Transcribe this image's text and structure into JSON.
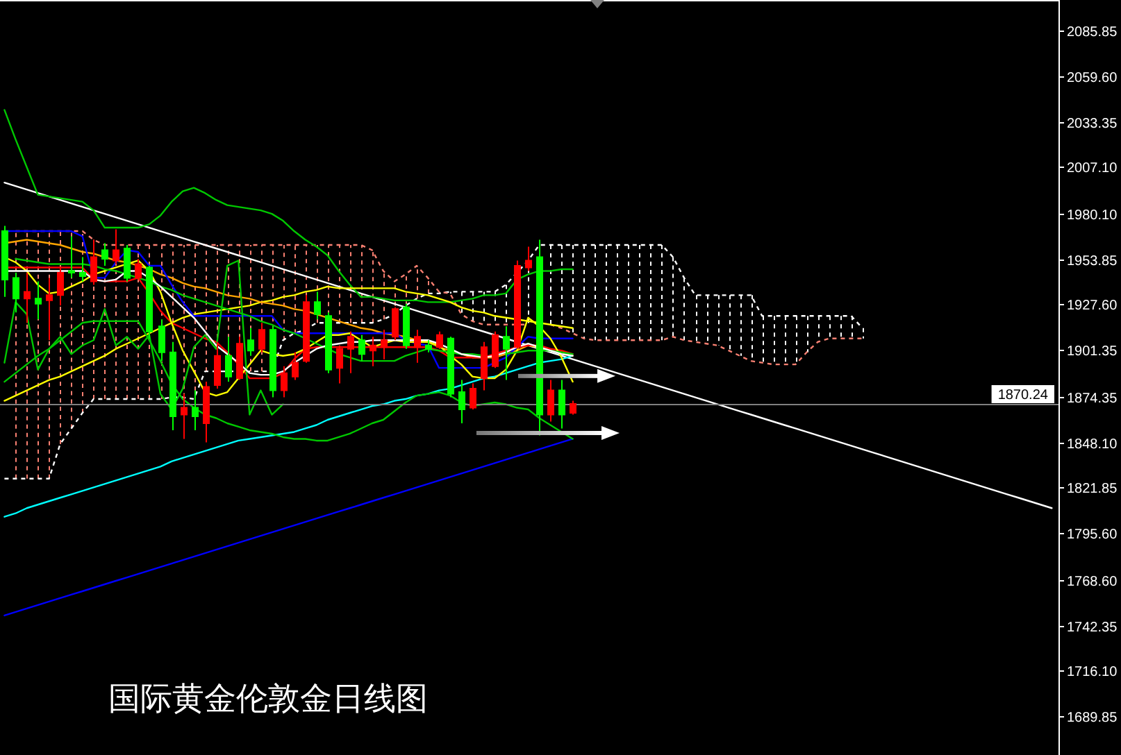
{
  "chart_data": {
    "type": "candlestick",
    "title": "国际黄金伦敦金日线图",
    "categories": [
      null,
      null,
      null,
      null,
      null,
      null,
      null,
      null,
      null,
      null,
      null,
      null,
      null,
      null,
      null,
      null,
      null,
      null,
      null,
      null,
      null,
      null,
      null,
      null,
      null,
      null,
      null,
      null,
      null,
      null,
      null,
      null,
      null,
      null,
      null,
      null,
      null,
      null,
      null,
      null,
      null,
      null,
      null,
      null,
      null,
      null,
      null,
      null,
      null,
      null,
      null,
      null,
      null,
      null,
      null,
      null,
      null,
      null,
      null,
      null,
      null,
      null,
      null,
      null,
      null,
      null,
      null,
      null,
      null,
      null,
      null,
      null,
      null,
      null,
      null,
      null,
      null,
      null,
      null,
      null,
      null,
      null,
      null,
      null,
      null,
      null,
      null,
      null,
      null,
      null,
      null,
      null,
      null,
      null,
      null
    ],
    "ohlc": [
      [
        1970,
        1973,
        1932,
        1942
      ],
      [
        1943,
        1946,
        1923,
        1931
      ],
      [
        1931,
        1946,
        1917,
        1935
      ],
      [
        1931,
        1941,
        1919,
        1928
      ],
      [
        1930,
        1943,
        1907,
        1933
      ],
      [
        1933,
        1949,
        1927,
        1946
      ],
      [
        1947,
        1967,
        1943,
        1946
      ],
      [
        1946,
        1955,
        1941,
        1944
      ],
      [
        1941,
        1965,
        1939,
        1955
      ],
      [
        1959,
        1963,
        1950,
        1954
      ],
      [
        1953,
        1971,
        1951,
        1959
      ],
      [
        1960,
        1962,
        1941,
        1943
      ],
      [
        1943,
        1954,
        1942,
        1951
      ],
      [
        1949,
        1950,
        1908,
        1912
      ],
      [
        1915,
        1919,
        1895,
        1900
      ],
      [
        1900,
        1906,
        1855,
        1863
      ],
      [
        1864,
        1876,
        1850,
        1868
      ],
      [
        1868,
        1878,
        1855,
        1863
      ],
      [
        1859,
        1883,
        1848,
        1880
      ],
      [
        1881,
        1906,
        1879,
        1898
      ],
      [
        1898,
        1909,
        1883,
        1886
      ],
      [
        1885,
        1909,
        1884,
        1905
      ],
      [
        1907,
        1914,
        1898,
        1901
      ],
      [
        1902,
        1917,
        1900,
        1913
      ],
      [
        1913,
        1915,
        1874,
        1878
      ],
      [
        1878,
        1892,
        1874,
        1888
      ],
      [
        1886,
        1900,
        1884,
        1894
      ],
      [
        1895,
        1933,
        1894,
        1929
      ],
      [
        1929,
        1935,
        1919,
        1922
      ],
      [
        1921,
        1923,
        1888,
        1890
      ],
      [
        1891,
        1904,
        1882,
        1902
      ],
      [
        1902,
        1912,
        1888,
        1909
      ],
      [
        1907,
        1910,
        1895,
        1899
      ],
      [
        1901,
        1909,
        1892,
        1904
      ],
      [
        1903,
        1913,
        1896,
        1907
      ],
      [
        1909,
        1926,
        1907,
        1925
      ],
      [
        1926,
        1928,
        1902,
        1904
      ],
      [
        1903,
        1913,
        1894,
        1909
      ],
      [
        1904,
        1907,
        1900,
        1902
      ],
      [
        1903,
        1912,
        1902,
        1910
      ],
      [
        1908,
        1909,
        1874,
        1876
      ],
      [
        1877,
        1884,
        1859,
        1867
      ],
      [
        1868,
        1882,
        1867,
        1879
      ],
      [
        1885,
        1906,
        1878,
        1903
      ],
      [
        1892,
        1912,
        1891,
        1910
      ],
      [
        1909,
        1915,
        1884,
        1902
      ],
      [
        1903,
        1953,
        1902,
        1950
      ],
      [
        1949,
        1961,
        1947,
        1953
      ],
      [
        1955,
        1965,
        1852,
        1864
      ],
      [
        1864,
        1884,
        1860,
        1878
      ],
      [
        1878,
        1884,
        1856,
        1864
      ],
      [
        1865,
        1872,
        1864,
        1870.24
      ],
      null,
      null,
      null,
      null,
      null,
      null,
      null,
      null,
      null,
      null,
      null,
      null,
      null,
      null,
      null,
      null,
      null,
      null,
      null,
      null,
      null,
      null,
      null,
      null,
      null,
      null,
      null,
      null,
      null,
      null,
      null,
      null,
      null,
      null,
      null,
      null,
      null,
      null,
      null,
      null,
      null,
      null,
      null
    ],
    "colors": [
      "#00ff00",
      "#00ff00",
      "#ff0000",
      "#00ff00",
      "#ff0000",
      "#ff0000",
      "#00ff00",
      "#00ff00",
      "#ff0000",
      "#00ff00",
      "#ff0000",
      "#00ff00",
      "#ff0000",
      "#00ff00",
      "#00ff00",
      "#00ff00",
      "#ff0000",
      "#00ff00",
      "#ff0000",
      "#ff0000",
      "#00ff00",
      "#ff0000",
      "#00ff00",
      "#ff0000",
      "#00ff00",
      "#ff0000",
      "#ff0000",
      "#ff0000",
      "#00ff00",
      "#00ff00",
      "#ff0000",
      "#ff0000",
      "#00ff00",
      "#ff0000",
      "#ff0000",
      "#ff0000",
      "#00ff00",
      "#ff0000",
      "#00ff00",
      "#ff0000",
      "#00ff00",
      "#00ff00",
      "#ff0000",
      "#ff0000",
      "#ff0000",
      "#00ff00",
      "#ff0000",
      "#ff0000",
      "#00ff00",
      "#ff0000",
      "#00ff00",
      "#ff0000",
      null,
      null,
      null,
      null,
      null,
      null,
      null,
      null,
      null,
      null,
      null,
      null,
      null,
      null,
      null,
      null,
      null,
      null,
      null,
      null,
      null,
      null,
      null,
      null,
      null,
      null,
      null,
      null,
      null,
      null,
      null,
      null,
      null,
      null,
      null,
      null,
      null,
      null,
      null,
      null,
      null,
      null,
      null
    ],
    "series": [
      {
        "type": "line",
        "color": "#ffffff",
        "line_style": "dashed",
        "values": [
          1827,
          1827,
          1827,
          1827,
          1827,
          1847,
          1856,
          1865,
          1873,
          1873,
          1873,
          1873,
          1873,
          1873,
          1873,
          1874,
          1874,
          1873,
          1889,
          1889,
          1889,
          1889,
          1889,
          1889,
          1889,
          1907,
          1911,
          1913,
          1917,
          1917,
          1917,
          1917,
          1917,
          1917,
          1919,
          1922,
          1927,
          1931,
          1934,
          1934,
          1935,
          1935,
          1935,
          1935,
          1935,
          1939,
          1946,
          1953,
          1962,
          1962,
          1962,
          1962,
          1962,
          1962,
          1962,
          1962,
          1962,
          1962,
          1962,
          1962,
          1955,
          1943,
          1933,
          1933,
          1933,
          1933,
          1933,
          1933,
          1921,
          1921,
          1921,
          1921,
          1921,
          1921,
          1921,
          1921,
          1921,
          1914,
          null,
          null,
          null,
          null,
          null,
          null,
          null,
          null,
          null,
          null,
          null,
          null,
          null,
          null,
          null,
          null,
          null
        ]
      },
      {
        "type": "line",
        "color": "#fa8072",
        "line_style": "dashed",
        "values": [
          null,
          1970,
          1970,
          1970,
          1970,
          1970,
          1970,
          1970,
          1965,
          1962,
          1962,
          1962,
          1962,
          1962,
          1962,
          1962,
          1962,
          1962,
          1962,
          1962,
          1962,
          1962,
          1962,
          1962,
          1962,
          1962,
          1962,
          1962,
          1962,
          1962,
          1962,
          1962,
          1962,
          1959,
          1947,
          1941,
          1945,
          1950,
          1943,
          1935,
          1934,
          1922,
          1918,
          1916,
          1916,
          1916,
          1916,
          1916,
          null,
          1916,
          1914,
          1911,
          1908,
          1907,
          1907,
          1907,
          1907,
          1907,
          1907,
          1907,
          1909,
          1907,
          1906,
          1905,
          1904,
          1901,
          1898,
          1895,
          1894,
          1893,
          1893,
          1893,
          1900,
          1906,
          1908,
          1908,
          1908,
          1908,
          null,
          null,
          null,
          null,
          null,
          null,
          null,
          null,
          null,
          null,
          null,
          null,
          null,
          null,
          null,
          null,
          null
        ]
      },
      {
        "type": "line",
        "color": "#ffffff",
        "values": [
          1998,
          1996,
          1994,
          1992,
          1990,
          1988,
          1986,
          1984,
          1982,
          1980,
          1978,
          1976,
          1974,
          1972,
          1970,
          1968,
          1966,
          1964,
          1962,
          1960,
          1958,
          1956,
          1954,
          1952,
          1950,
          1948,
          1946,
          1944,
          1942,
          1940,
          1938,
          1936,
          1934,
          1932,
          1930,
          1928,
          1926,
          1924,
          1922,
          1920,
          1918,
          1916,
          1914,
          1912,
          1910,
          1908,
          1906,
          1904,
          1902,
          1900,
          1898,
          1896,
          1894,
          1892,
          1890,
          1888,
          1886,
          1884,
          1882,
          1880,
          1878,
          1876,
          1874,
          1872,
          1870,
          1868,
          1866,
          1864,
          1862,
          1860,
          1858,
          1856,
          1854,
          1852,
          1850,
          1848,
          1846,
          1844,
          1842,
          1840,
          1838,
          1836,
          1834,
          1832,
          1830,
          1828,
          1826,
          1824,
          1822,
          1820,
          1818,
          1816,
          1814,
          1812,
          1810
        ]
      },
      {
        "type": "line",
        "color": "#0000ff",
        "values": [
          1748,
          1750,
          1752,
          1754,
          1756,
          1758,
          1760,
          1762,
          1764,
          1766,
          1768,
          1770,
          1772,
          1774,
          1776,
          1778,
          1780,
          1782,
          1784,
          1786,
          1788,
          1790,
          1792,
          1794,
          1796,
          1798,
          1800,
          1802,
          1804,
          1806,
          1808,
          1810,
          1812,
          1814,
          1816,
          1818,
          1820,
          1822,
          1824,
          1826,
          1828,
          1830,
          1832,
          1834,
          1836,
          1838,
          1840,
          1842,
          1844,
          1846,
          1848,
          1850,
          null,
          null,
          null,
          null,
          null,
          null,
          null,
          null,
          null,
          null,
          null,
          null,
          null,
          null,
          null,
          null,
          null,
          null,
          null,
          null,
          null,
          null,
          null,
          null,
          null,
          null,
          null,
          null,
          null,
          null,
          null,
          null,
          null,
          null,
          null,
          null,
          null,
          null,
          null,
          null,
          null,
          null,
          null
        ]
      },
      {
        "type": "line",
        "color": "#00ffff",
        "values": [
          1805,
          1807,
          1810,
          1812,
          1814,
          1816,
          1818,
          1820,
          1822,
          1824,
          1826,
          1828,
          1830,
          1832,
          1834,
          1837,
          1839,
          1841,
          1843,
          1845,
          1847,
          1849,
          1850,
          1851,
          1852,
          1853,
          1854,
          1856,
          1858,
          1861,
          1863,
          1865,
          1867,
          1869,
          1870,
          1872,
          1873,
          1875,
          1876,
          1878,
          1879,
          1881,
          1883,
          1885,
          1886,
          1888,
          1890,
          1892,
          1894,
          1895,
          1896,
          1898,
          null,
          null,
          null,
          null,
          null,
          null,
          null,
          null,
          null,
          null,
          null,
          null,
          null,
          null,
          null,
          null,
          null,
          null,
          null,
          null,
          null,
          null,
          null,
          null,
          null,
          null,
          null,
          null,
          null,
          null,
          null,
          null,
          null,
          null,
          null,
          null,
          null,
          null,
          null,
          null,
          null,
          null,
          null
        ]
      },
      {
        "type": "line",
        "color": "#00c800",
        "values": [
          2040,
          2023,
          2007,
          1991,
          1990,
          1989,
          1988,
          1987,
          1982,
          1972,
          1972,
          1972,
          1972,
          1974,
          1979,
          1987,
          1993,
          1995,
          1992,
          1988,
          1985,
          1984,
          1983,
          1982,
          1980,
          1976,
          1970,
          1965,
          1961,
          1956,
          1947,
          1939,
          1932,
          1932,
          1931,
          1930,
          1930,
          1930,
          1929,
          1929,
          1929,
          1930,
          1931,
          1933,
          1933,
          1934,
          1942,
          1945,
          1947,
          1947,
          1948,
          1948,
          null,
          null,
          null,
          null,
          null,
          null,
          null,
          null,
          null,
          null,
          null,
          null,
          null,
          null,
          null,
          null,
          null,
          null,
          null,
          null,
          null,
          null,
          null,
          null,
          null,
          null,
          null,
          null,
          null,
          null,
          null,
          null,
          null,
          null,
          null,
          null,
          null,
          null,
          null,
          null,
          null,
          null,
          null
        ]
      },
      {
        "type": "line",
        "color": "#ffff00",
        "values": [
          1872,
          1875,
          1878,
          1881,
          1884,
          1886,
          1889,
          1892,
          1895,
          1898,
          1902,
          1905,
          1908,
          1911,
          1914,
          1917,
          1920,
          1922,
          1923,
          1924,
          1925,
          1926,
          1927,
          1929,
          1930,
          1932,
          1933,
          1935,
          1936,
          1938,
          1937,
          1937,
          1937,
          1937,
          1937,
          1937,
          1935,
          1934,
          1933,
          1931,
          1929,
          1926,
          1924,
          1923,
          1921,
          1920,
          1919,
          1918,
          1917,
          1916,
          1915,
          1914,
          null,
          null,
          null,
          null,
          null,
          null,
          null,
          null,
          null,
          null,
          null,
          null,
          null,
          null,
          null,
          null,
          null,
          null,
          null,
          null,
          null,
          null,
          null,
          null,
          null,
          null,
          null,
          null,
          null,
          null,
          null,
          null,
          null,
          null,
          null,
          null,
          null,
          null,
          null,
          null,
          null,
          null,
          null
        ]
      },
      {
        "type": "line",
        "color": "#ffa500",
        "values": [
          1963,
          1964,
          1965,
          1964,
          1963,
          1962,
          1960,
          1958,
          1957,
          1955,
          1953,
          1952,
          1950,
          1948,
          1945,
          1943,
          1940,
          1938,
          1937,
          1935,
          1933,
          1932,
          1931,
          1929,
          1928,
          1927,
          1925,
          1924,
          1922,
          1920,
          1918,
          1916,
          1914,
          1913,
          1911,
          1910,
          1909,
          1907,
          1906,
          1903,
          1901,
          1899,
          1897,
          1897,
          1897,
          1899,
          1901,
          1904,
          1903,
          1901,
          1900,
          1898,
          null,
          null,
          null,
          null,
          null,
          null,
          null,
          null,
          null,
          null,
          null,
          null,
          null,
          null,
          null,
          null,
          null,
          null,
          null,
          null,
          null,
          null,
          null,
          null,
          null,
          null,
          null,
          null,
          null,
          null,
          null,
          null,
          null,
          null,
          null,
          null,
          null,
          null,
          null,
          null,
          null,
          null,
          null
        ]
      },
      {
        "type": "line",
        "color": "#0000ff",
        "values": [
          1970,
          1970,
          1970,
          1970,
          1970,
          1970,
          1970,
          1967,
          1943,
          1943,
          1952,
          1959,
          1958,
          1950,
          1950,
          1939,
          1929,
          1921,
          1921,
          1921,
          1921,
          1921,
          1921,
          1921,
          1921,
          1913,
          1911,
          1911,
          1911,
          1911,
          1911,
          1911,
          1911,
          1911,
          1911,
          1911,
          1907,
          1905,
          1904,
          1891,
          1891,
          1891,
          1891,
          1891,
          1894,
          1897,
          1903,
          1909,
          1908,
          1908,
          1908,
          1908,
          null,
          null,
          null,
          null,
          null,
          null,
          null,
          null,
          null,
          null,
          null,
          null,
          null,
          null,
          null,
          null,
          null,
          null,
          null,
          null,
          null,
          null,
          null,
          null,
          null,
          null,
          null,
          null,
          null,
          null,
          null,
          null,
          null,
          null,
          null,
          null,
          null,
          null,
          null,
          null,
          null,
          null,
          null
        ]
      },
      {
        "type": "line",
        "color": "#ff0000",
        "values": [
          1949,
          1949,
          1949,
          1949,
          1949,
          1949,
          1949,
          1949,
          1942,
          1941,
          1941,
          1941,
          1943,
          1934,
          1924,
          1917,
          1914,
          1911,
          1908,
          1906,
          1900,
          1893,
          1885,
          1885,
          1885,
          1888,
          1896,
          1902,
          1903,
          1903,
          1903,
          1903,
          1903,
          1903,
          1903,
          1903,
          1903,
          1903,
          1903,
          1901,
          1897,
          1897,
          1897,
          1897,
          1899,
          1901,
          1903,
          1904,
          1904,
          1902,
          1901,
          1899,
          null,
          null,
          null,
          null,
          null,
          null,
          null,
          null,
          null,
          null,
          null,
          null,
          null,
          null,
          null,
          null,
          null,
          null,
          null,
          null,
          null,
          null,
          null,
          null,
          null,
          null,
          null,
          null,
          null,
          null,
          null,
          null,
          null,
          null,
          null,
          null,
          null,
          null,
          null,
          null,
          null,
          null,
          null
        ]
      },
      {
        "type": "line",
        "color": "#ffff00",
        "values": [
          1955,
          1952,
          1947,
          1939,
          1934,
          1935,
          1938,
          1941,
          1945,
          1947,
          1949,
          1951,
          1953,
          1947,
          1935,
          1917,
          1901,
          1889,
          1877,
          1875,
          1877,
          1885,
          1893,
          1901,
          1899,
          1898,
          1899,
          1902,
          1906,
          1910,
          1910,
          1911,
          1907,
          1903,
          1905,
          1907,
          1906,
          1906,
          1906,
          1904,
          1898,
          1893,
          1886,
          1885,
          1885,
          1890,
          1901,
          1920,
          1915,
          1908,
          1897,
          1883,
          null,
          null,
          null,
          null,
          null,
          null,
          null,
          null,
          null,
          null,
          null,
          null,
          null,
          null,
          null,
          null,
          null,
          null,
          null,
          null,
          null,
          null,
          null,
          null,
          null,
          null,
          null,
          null,
          null,
          null,
          null,
          null,
          null,
          null,
          null,
          null,
          null,
          null,
          null,
          null,
          null,
          null,
          null
        ]
      },
      {
        "type": "line",
        "color": "#00c800",
        "values": [
          null,
          1954,
          1953,
          1952,
          1951,
          1951,
          1951,
          1951,
          1950,
          1948,
          1947,
          1945,
          1943,
          1941,
          1938,
          1936,
          1933,
          1931,
          1929,
          1927,
          1925,
          1923,
          1921,
          1918,
          1916,
          1913,
          1911,
          1908,
          1905,
          1902,
          1899,
          1897,
          1895,
          1895,
          1895,
          1895,
          1898,
          1900,
          1902,
          1901,
          1900,
          1899,
          1899,
          1898,
          null,
          1899,
          1900,
          1901,
          1901,
          1901,
          1900,
          1899,
          null,
          null,
          null,
          null,
          null,
          null,
          null,
          null,
          null,
          null,
          null,
          null,
          null,
          null,
          null,
          null,
          null,
          null,
          null,
          null,
          null,
          null,
          null,
          null,
          null,
          null,
          null,
          null,
          null,
          null,
          null,
          null,
          null,
          null,
          null,
          null,
          null,
          null,
          null,
          null,
          null,
          null,
          null
        ]
      },
      {
        "type": "line",
        "color": "#00c800",
        "values": [
          1883,
          1888,
          1893,
          1898,
          1902,
          1907,
          1912,
          1917,
          1918,
          1918,
          1918,
          1918,
          1918,
          1907,
          1895,
          1882,
          1873,
          1868,
          1864,
          1862,
          1859,
          1857,
          1855,
          1854,
          1853,
          1851,
          1850,
          1850,
          1849,
          1849,
          1851,
          1853,
          1856,
          1859,
          1861,
          1866,
          1871,
          1875,
          1876,
          1877,
          1875,
          1871,
          1869,
          1870,
          1871,
          1870,
          1868,
          1867,
          1862,
          1858,
          1854,
          1850,
          null,
          null,
          null,
          null,
          null,
          null,
          null,
          null,
          null,
          null,
          null,
          null,
          null,
          null,
          null,
          null,
          null,
          null,
          null,
          null,
          null,
          null,
          null,
          null,
          null,
          null,
          null,
          null,
          null,
          null,
          null,
          null,
          null,
          null,
          null,
          null,
          null,
          null,
          null,
          null,
          null,
          null,
          null
        ]
      },
      {
        "type": "line",
        "color": "#00c800",
        "values": [
          1894,
          1929,
          1922,
          1890,
          1902,
          1909,
          1899,
          1904,
          1907,
          1925,
          1904,
          1909,
          1902,
          1910,
          1876,
          1867,
          1879,
          1903,
          1910,
          1902,
          1950,
          1953,
          1864,
          1878,
          1864,
          1870,
          null,
          null,
          null,
          null,
          null,
          null,
          null,
          null,
          null,
          null,
          null,
          null,
          null,
          null,
          null,
          null,
          null,
          null,
          null,
          null,
          null,
          null,
          null,
          null,
          null,
          null,
          null,
          null,
          null,
          null,
          null,
          null,
          null,
          null,
          null,
          null,
          null,
          null,
          null,
          null,
          null,
          null,
          null,
          null,
          null,
          null,
          null,
          null,
          null,
          null,
          null,
          null,
          null,
          null,
          null,
          null,
          null,
          null,
          null,
          null,
          null,
          null,
          null,
          null,
          null,
          null,
          null,
          null,
          null
        ]
      },
      {
        "type": "line",
        "color": "#ffffff",
        "values": [
          1947,
          1947,
          1947,
          1947,
          1947,
          1947,
          1947,
          1947,
          1942,
          1941,
          1942,
          1947,
          1947,
          1943,
          1938,
          1932,
          1926,
          1920,
          1912,
          1904,
          1899,
          1894,
          1888,
          1887,
          1887,
          1889,
          1894,
          1898,
          1902,
          1904,
          1905,
          1906,
          1906,
          1907,
          1907,
          1907,
          1907,
          1907,
          1907,
          1905,
          1902,
          1899,
          1898,
          1897,
          1898,
          1900,
          1903,
          1905,
          1903,
          1901,
          1899,
          1898,
          null,
          null,
          null,
          null,
          null,
          null,
          null,
          null,
          null,
          null,
          null,
          null,
          null,
          null,
          null,
          null,
          null,
          null,
          null,
          null,
          null,
          null,
          null,
          null,
          null,
          null,
          null,
          null,
          null,
          null,
          null,
          null,
          null,
          null,
          null,
          null,
          null,
          null,
          null,
          null,
          null,
          null,
          null
        ]
      }
    ],
    "ylim": [
      1667.4,
      2103.5
    ],
    "yticks": [
      2085.85,
      {
        "value": 2059.6,
        "label": "2059.60"
      },
      2033.35,
      {
        "value": 2007.1,
        "label": "2007.10"
      },
      {
        "value": 1980.1,
        "label": "1980.10"
      },
      1953.85,
      {
        "value": 1927.6,
        "label": "1927.60"
      },
      1901.35,
      1874.35,
      {
        "value": 1848.1,
        "label": "1848.10"
      },
      1821.85,
      {
        "value": 1795.6,
        "label": "1795.60"
      },
      {
        "value": 1768.6,
        "label": "1768.60"
      },
      1742.35,
      {
        "value": 1716.1,
        "label": "1716.10"
      },
      1689.85
    ],
    "tick_labels": "y",
    "ref_lines": [
      {
        "axis": "y",
        "value": 1870.24,
        "label": "1870.24",
        "color": "#808080"
      }
    ]
  }
}
